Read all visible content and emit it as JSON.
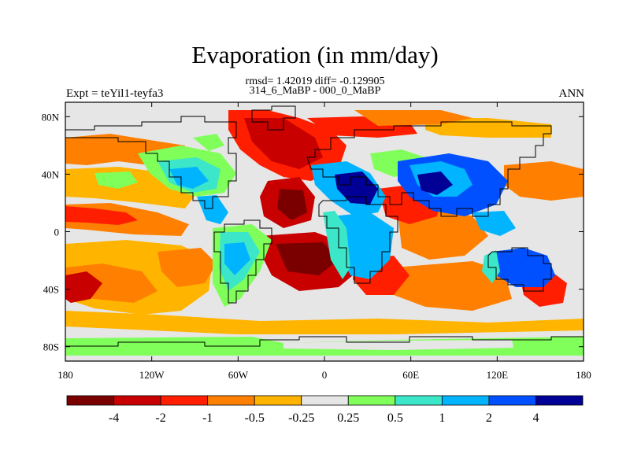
{
  "title": "Evaporation (in mm/day)",
  "stats_line": "rmsd= 1.42019 diff= -0.129905",
  "comparison_line": "314_6_MaBP - 000_0_MaBP",
  "left_label": "Expt = teYil1-teyfa3",
  "right_label": "ANN",
  "map": {
    "lon_range": [
      -180,
      180
    ],
    "lat_range": [
      -90,
      90
    ],
    "lon_ticks": [
      "180",
      "120W",
      "60W",
      "0",
      "60E",
      "120E",
      "180"
    ],
    "lat_ticks": [
      "80N",
      "40N",
      "0",
      "40S",
      "80S"
    ],
    "background_color": "#e6e6e6"
  },
  "colorbar": {
    "colors": [
      "#7a0000",
      "#c80000",
      "#ff1e00",
      "#ff7f00",
      "#ffb400",
      "#e6e6e6",
      "#80ff5a",
      "#3ce6c8",
      "#00b4ff",
      "#0050ff",
      "#000096"
    ],
    "labels": [
      "-4",
      "-2",
      "-1",
      "-0.5",
      "-0.25",
      "0.25",
      "0.5",
      "1",
      "2",
      "4"
    ]
  },
  "chart_data": {
    "type": "heatmap",
    "title": "Evaporation (in mm/day)",
    "variable": "Evaporation",
    "units": "mm/day",
    "statistics": {
      "rmsd": 1.42019,
      "diff": -0.129905
    },
    "x_ticks": [
      "180",
      "120W",
      "60W",
      "0",
      "60E",
      "120E",
      "180"
    ],
    "y_ticks": [
      "80N",
      "40N",
      "0",
      "40S",
      "80S"
    ],
    "xlim": [
      -180,
      180
    ],
    "ylim": [
      -90,
      90
    ],
    "levels": [
      -4,
      -2,
      -1,
      -0.5,
      -0.25,
      0.25,
      0.5,
      1,
      2,
      4
    ]
  }
}
